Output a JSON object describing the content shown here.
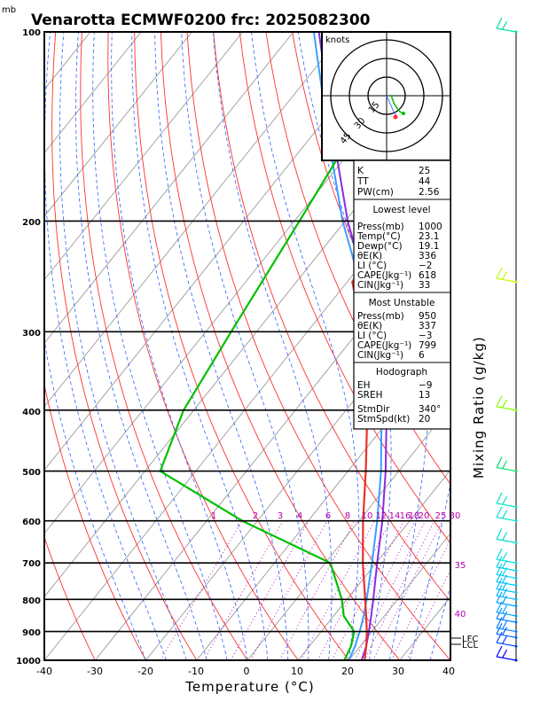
{
  "header": {
    "pressure_unit": "mb",
    "title": "Venarotta ECMWF0200  frc: 2025082300"
  },
  "chart_data": {
    "type": "skew-t",
    "xlabel": "Temperature (°C)",
    "right_label": "Mixing Ratio (g/kg)",
    "x_range": [
      -40,
      40
    ],
    "pressure_range": [
      1000,
      100
    ],
    "pressure_ticks": [
      100,
      200,
      300,
      400,
      500,
      600,
      700,
      800,
      900,
      1000
    ],
    "temperature_ticks": [
      -40,
      -30,
      -20,
      -10,
      0,
      10,
      20,
      30,
      40
    ],
    "mixing_ratio_labels": [
      "1",
      "2",
      "3",
      "4",
      "6",
      "8",
      "10",
      "12",
      "14",
      "16",
      "18",
      "20",
      "25",
      "30"
    ],
    "theta_e_labels": [
      "35",
      "40"
    ],
    "lcl_labels": [
      "LFC",
      "LCL"
    ],
    "series": [
      {
        "name": "Temperature",
        "color": "#e8322b",
        "points": [
          [
            1000,
            23.1
          ],
          [
            950,
            21.2
          ],
          [
            900,
            19.0
          ],
          [
            850,
            16.4
          ],
          [
            800,
            13.6
          ],
          [
            700,
            7.4
          ],
          [
            600,
            0.8
          ],
          [
            500,
            -6.5
          ],
          [
            400,
            -15.8
          ],
          [
            300,
            -29.0
          ],
          [
            250,
            -39.0
          ],
          [
            200,
            -40.5
          ],
          [
            150,
            -40.0
          ],
          [
            100,
            -40.0
          ]
        ]
      },
      {
        "name": "Dewpoint",
        "color": "#00c000",
        "points": [
          [
            1000,
            19.1
          ],
          [
            950,
            18.2
          ],
          [
            900,
            16.5
          ],
          [
            850,
            12.0
          ],
          [
            800,
            9.0
          ],
          [
            700,
            1.0
          ],
          [
            600,
            -23.0
          ],
          [
            500,
            -47.0
          ],
          [
            400,
            -52.0
          ],
          [
            300,
            -55.0
          ],
          [
            200,
            -59.0
          ],
          [
            150,
            -62.0
          ],
          [
            100,
            -67.0
          ]
        ]
      },
      {
        "name": "Parcel",
        "color": "#3a9fff",
        "points": [
          [
            1000,
            20.0
          ],
          [
            950,
            19.0
          ],
          [
            900,
            17.6
          ],
          [
            850,
            15.9
          ],
          [
            800,
            13.9
          ],
          [
            700,
            9.2
          ],
          [
            600,
            3.6
          ],
          [
            500,
            -3.5
          ],
          [
            400,
            -13.0
          ],
          [
            300,
            -27.5
          ],
          [
            250,
            -37.5
          ],
          [
            200,
            -50.5
          ],
          [
            150,
            -65.5
          ],
          [
            100,
            -86.0
          ]
        ]
      },
      {
        "name": "Virtual temperature",
        "color": "#8a2be2",
        "points": [
          [
            1000,
            22.5
          ],
          [
            950,
            21.2
          ],
          [
            900,
            19.4
          ],
          [
            850,
            17.4
          ],
          [
            800,
            15.2
          ],
          [
            700,
            10.2
          ],
          [
            600,
            4.6
          ],
          [
            500,
            -2.6
          ],
          [
            400,
            -12.0
          ],
          [
            300,
            -26.5
          ],
          [
            250,
            -36.5
          ],
          [
            200,
            -49.5
          ],
          [
            150,
            -64.5
          ],
          [
            100,
            -85.0
          ]
        ]
      }
    ],
    "wind_barbs": [
      {
        "p": 1000,
        "color": "#0000ff"
      },
      {
        "p": 950,
        "color": "#0040ff"
      },
      {
        "p": 920,
        "color": "#0060ff"
      },
      {
        "p": 900,
        "color": "#0080ff"
      },
      {
        "p": 870,
        "color": "#0080ff"
      },
      {
        "p": 850,
        "color": "#00a0ff"
      },
      {
        "p": 820,
        "color": "#00a0ff"
      },
      {
        "p": 800,
        "color": "#00b0ff"
      },
      {
        "p": 780,
        "color": "#00c0ff"
      },
      {
        "p": 760,
        "color": "#00c0ff"
      },
      {
        "p": 740,
        "color": "#00d0f0"
      },
      {
        "p": 720,
        "color": "#00d0f0"
      },
      {
        "p": 700,
        "color": "#00e0e0"
      },
      {
        "p": 650,
        "color": "#00e0d0"
      },
      {
        "p": 600,
        "color": "#00e0d0"
      },
      {
        "p": 570,
        "color": "#00e0c0"
      },
      {
        "p": 500,
        "color": "#00e070"
      },
      {
        "p": 400,
        "color": "#80ff00"
      },
      {
        "p": 250,
        "color": "#c0ff00"
      },
      {
        "p": 100,
        "color": "#00e0a0"
      }
    ]
  },
  "hodograph": {
    "unit": "knots",
    "rings": [
      "15",
      "30",
      "45"
    ]
  },
  "indices": {
    "top": [
      {
        "label": "K",
        "value": "25"
      },
      {
        "label": "TT",
        "value": "44"
      },
      {
        "label": "PW(cm)",
        "value": "2.56"
      }
    ],
    "lowest_level": {
      "title": "Lowest level",
      "rows": [
        {
          "label": "Press(mb)",
          "value": "1000"
        },
        {
          "label": "Temp(°C)",
          "value": "23.1"
        },
        {
          "label": "Dewp(°C)",
          "value": "19.1"
        },
        {
          "label": "θE(K)",
          "value": "336"
        },
        {
          "label": "LI (°C)",
          "value": "−2"
        },
        {
          "label": "CAPE(Jkg⁻¹)",
          "value": "618"
        },
        {
          "label": "CIN(Jkg⁻¹)",
          "value": "33"
        }
      ]
    },
    "most_unstable": {
      "title": "Most Unstable",
      "rows": [
        {
          "label": "Press(mb)",
          "value": "950"
        },
        {
          "label": "θE(K)",
          "value": "337"
        },
        {
          "label": "LI (°C)",
          "value": "−3"
        },
        {
          "label": "CAPE(Jkg⁻¹)",
          "value": "799"
        },
        {
          "label": "CIN(Jkg⁻¹)",
          "value": "6"
        }
      ]
    },
    "hodograph_box": {
      "title": "Hodograph",
      "rows": [
        {
          "label": "EH",
          "value": "−9"
        },
        {
          "label": "SREH",
          "value": "13"
        },
        {
          "label": "StmDir",
          "value": "340°"
        },
        {
          "label": "StmSpd(kt)",
          "value": "20"
        }
      ]
    }
  }
}
